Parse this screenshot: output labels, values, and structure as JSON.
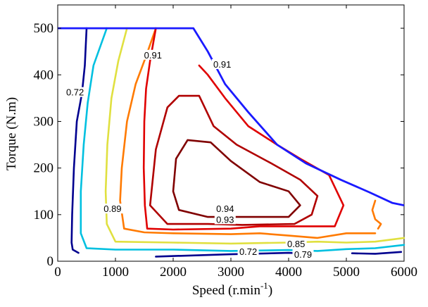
{
  "chart_data": {
    "type": "contour",
    "title": "",
    "xlabel": "Speed (r.min",
    "xlabel_sup": "-1",
    "xlabel_close": ")",
    "ylabel": "Torque (N.m)",
    "xlim": [
      0,
      6000
    ],
    "ylim": [
      0,
      550
    ],
    "x_ticks": [
      0,
      1000,
      2000,
      3000,
      4000,
      5000,
      6000
    ],
    "y_ticks": [
      0,
      100,
      200,
      300,
      400,
      500
    ],
    "grid": false,
    "boundary": {
      "color": "#1a1aff",
      "points": [
        [
          0,
          500
        ],
        [
          2350,
          500
        ],
        [
          2600,
          450
        ],
        [
          2900,
          380
        ],
        [
          3300,
          320
        ],
        [
          3800,
          250
        ],
        [
          4300,
          210
        ],
        [
          4900,
          175
        ],
        [
          5400,
          148
        ],
        [
          5800,
          125
        ],
        [
          6000,
          120
        ]
      ]
    },
    "contours": [
      {
        "level": "0.72",
        "color": "#00008f",
        "segments": [
          [
            [
              500,
              500
            ],
            [
              470,
              420
            ],
            [
              420,
              360
            ],
            [
              330,
              300
            ],
            [
              280,
              200
            ],
            [
              250,
              100
            ],
            [
              240,
              40
            ],
            [
              260,
              25
            ],
            [
              360,
              18
            ]
          ],
          [
            [
              1700,
              10
            ],
            [
              3000,
              15
            ],
            [
              4000,
              18
            ],
            [
              4400,
              16
            ]
          ],
          [
            [
              5100,
              17
            ],
            [
              5500,
              16
            ],
            [
              5950,
              20
            ]
          ]
        ]
      },
      {
        "level": "0.79",
        "color": "#00c0e0",
        "segments": [
          [
            [
              850,
              500
            ],
            [
              620,
              420
            ],
            [
              520,
              340
            ],
            [
              450,
              250
            ],
            [
              400,
              150
            ],
            [
              400,
              60
            ],
            [
              500,
              28
            ],
            [
              1000,
              25
            ],
            [
              2000,
              25
            ],
            [
              3000,
              22
            ],
            [
              4000,
              24
            ],
            [
              4500,
              22
            ],
            [
              5000,
              26
            ],
            [
              5500,
              28
            ],
            [
              6000,
              35
            ]
          ]
        ]
      },
      {
        "level": "0.85",
        "color": "#e0e040",
        "segments": [
          [
            [
              1200,
              500
            ],
            [
              1050,
              430
            ],
            [
              930,
              350
            ],
            [
              860,
              250
            ],
            [
              830,
              150
            ],
            [
              850,
              80
            ],
            [
              1000,
              42
            ],
            [
              2000,
              40
            ],
            [
              3000,
              38
            ],
            [
              4000,
              40
            ],
            [
              4500,
              42
            ],
            [
              5000,
              40
            ],
            [
              5500,
              42
            ],
            [
              6000,
              50
            ]
          ]
        ]
      },
      {
        "level": "0.89",
        "color": "#ff7a00",
        "segments": [
          [
            [
              1700,
              500
            ],
            [
              1530,
              440
            ],
            [
              1350,
              380
            ],
            [
              1200,
              300
            ],
            [
              1110,
              200
            ],
            [
              1080,
              130
            ],
            [
              1150,
              70
            ],
            [
              1500,
              62
            ],
            [
              2000,
              60
            ],
            [
              3000,
              58
            ],
            [
              3500,
              60
            ],
            [
              4000,
              55
            ],
            [
              4500,
              50
            ],
            [
              5000,
              60
            ],
            [
              5300,
              60
            ],
            [
              5500,
              60
            ]
          ],
          [
            [
              5500,
              130
            ],
            [
              5450,
              110
            ],
            [
              5500,
              90
            ],
            [
              5600,
              80
            ],
            [
              5550,
              70
            ]
          ]
        ]
      },
      {
        "level": "0.91",
        "color": "#e00000",
        "segments": [
          [
            [
              1700,
              500
            ],
            [
              1600,
              430
            ],
            [
              1530,
              370
            ],
            [
              1500,
              300
            ],
            [
              1490,
              200
            ],
            [
              1510,
              120
            ],
            [
              1550,
              70
            ],
            [
              2000,
              68
            ],
            [
              3000,
              70
            ],
            [
              3500,
              75
            ],
            [
              4200,
              75
            ],
            [
              4800,
              75
            ],
            [
              4950,
              120
            ],
            [
              4700,
              185
            ],
            [
              4200,
              220
            ],
            [
              3800,
              250
            ],
            [
              3300,
              290
            ],
            [
              2900,
              350
            ],
            [
              2600,
              400
            ],
            [
              2450,
              420
            ]
          ]
        ]
      },
      {
        "level": "0.93",
        "color": "#b00000",
        "segments": [
          [
            [
              1600,
              120
            ],
            [
              1700,
              240
            ],
            [
              1900,
              330
            ],
            [
              2100,
              355
            ],
            [
              2450,
              355
            ],
            [
              2700,
              290
            ],
            [
              3100,
              250
            ],
            [
              3700,
              210
            ],
            [
              4200,
              175
            ],
            [
              4500,
              140
            ],
            [
              4400,
              100
            ],
            [
              4100,
              80
            ],
            [
              3200,
              78
            ],
            [
              2600,
              80
            ],
            [
              1900,
              80
            ],
            [
              1600,
              120
            ]
          ]
        ]
      },
      {
        "level": "0.94",
        "color": "#800000",
        "segments": [
          [
            [
              2000,
              150
            ],
            [
              2050,
              220
            ],
            [
              2250,
              260
            ],
            [
              2650,
              255
            ],
            [
              3000,
              215
            ],
            [
              3500,
              170
            ],
            [
              4000,
              150
            ],
            [
              4200,
              120
            ],
            [
              4000,
              95
            ],
            [
              3300,
              95
            ],
            [
              2600,
              95
            ],
            [
              2100,
              110
            ],
            [
              2000,
              150
            ]
          ]
        ]
      }
    ],
    "contour_labels": [
      {
        "text": "0.72",
        "x": 300,
        "y": 360
      },
      {
        "text": "0.91",
        "x": 1650,
        "y": 440
      },
      {
        "text": "0.91",
        "x": 2850,
        "y": 420
      },
      {
        "text": "0.89",
        "x": 950,
        "y": 110
      },
      {
        "text": "0.94",
        "x": 2900,
        "y": 110
      },
      {
        "text": "0.93",
        "x": 2900,
        "y": 87
      },
      {
        "text": "0.85",
        "x": 4130,
        "y": 35
      },
      {
        "text": "0.72",
        "x": 3300,
        "y": 18
      },
      {
        "text": "0.79",
        "x": 4250,
        "y": 12
      }
    ]
  }
}
